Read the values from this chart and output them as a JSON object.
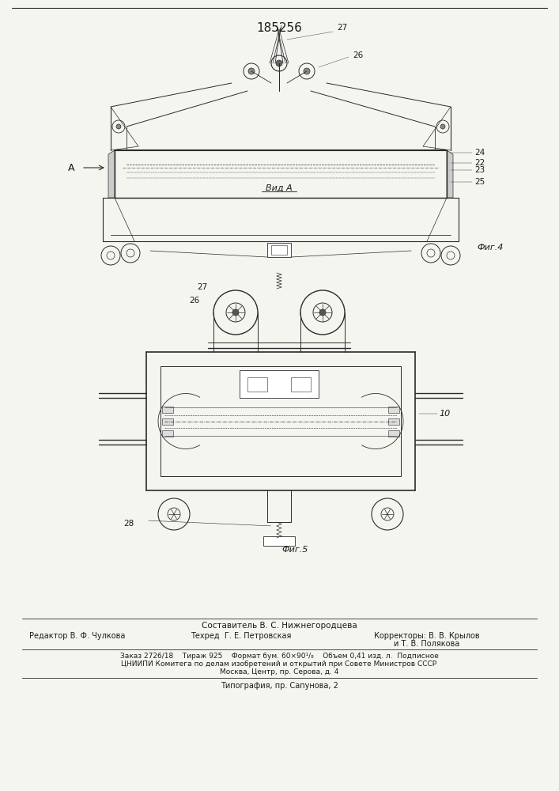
{
  "title_number": "185256",
  "bg_color": "#f5f5f0",
  "text_color": "#1a1a1a",
  "line_color": "#2a2a2a",
  "fig1_label": "Фиг.4",
  "fig2_label": "Фиг.5",
  "vid_label": "Вид A",
  "footer_line1": "Составитель В. С. Нижнегородцева",
  "footer_line2_col1": "Редактор В. Ф. Чулкова",
  "footer_line2_col2": "Техред  Г. Е. Петровская",
  "footer_line2_col3": "Корректоры: В. В. Крылов",
  "footer_line3_col3": "и Т. В. Полякова",
  "footer_box_line1": "Заказ 2726/18    Тираж 925    Формат бум. 60×90¹/₈    Объем 0,41 изд. л.  Подписное",
  "footer_box_line2": "ЦНИИПИ Комитега по делам изобретений и открытий при Совете Министров СССР",
  "footer_box_line3": "Москва, Центр, пр. Серова, д. 4",
  "footer_last": "Типография, пр. Сапунова, 2"
}
